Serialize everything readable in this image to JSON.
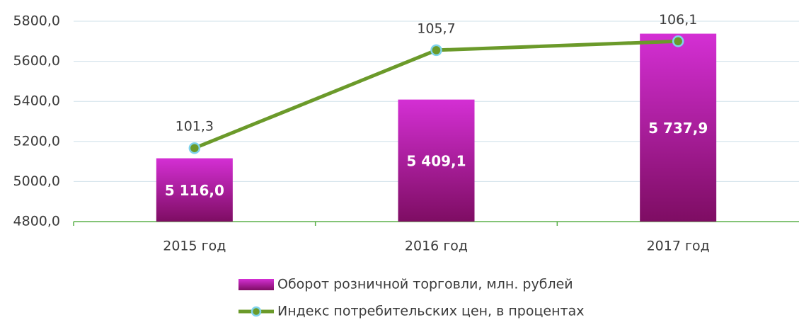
{
  "chart_data": {
    "type": "bar",
    "categories": [
      "2015 год",
      "2016 год",
      "2017 год"
    ],
    "series": [
      {
        "name": "Оборот розничной торговли, млн. рублей",
        "type": "bar",
        "color": "#d42fd4",
        "values": [
          5116.0,
          5409.1,
          5737.9
        ],
        "value_labels": [
          "5 116,0",
          "5 409,1",
          "5 737,9"
        ]
      },
      {
        "name": "Индекс потребительских цен, в процентах",
        "type": "line",
        "axis": "y2",
        "color": "#6b9a2a",
        "marker_edge_color": "#7fd3ec",
        "values": [
          101.3,
          105.7,
          106.1
        ],
        "value_labels": [
          "101,3",
          "105,7",
          "106,1"
        ]
      }
    ],
    "ylim": [
      4800,
      5800
    ],
    "yticks": [
      {
        "value": 4800,
        "label": "4800,0"
      },
      {
        "value": 5000,
        "label": "5000,0"
      },
      {
        "value": 5200,
        "label": "5200,0"
      },
      {
        "value": 5400,
        "label": "5400,0"
      },
      {
        "value": 5600,
        "label": "5600,0"
      },
      {
        "value": 5800,
        "label": "5800,0"
      }
    ],
    "y2lim": [
      98,
      107
    ],
    "grid": true,
    "legend": "bottom"
  }
}
